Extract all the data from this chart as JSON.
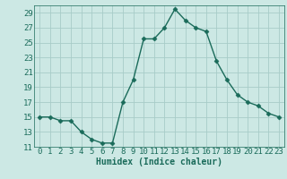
{
  "x": [
    0,
    1,
    2,
    3,
    4,
    5,
    6,
    7,
    8,
    9,
    10,
    11,
    12,
    13,
    14,
    15,
    16,
    17,
    18,
    19,
    20,
    21,
    22,
    23
  ],
  "y": [
    15,
    15,
    14.5,
    14.5,
    13,
    12,
    11.5,
    11.5,
    17,
    20,
    25.5,
    25.5,
    27,
    29.5,
    28,
    27,
    26.5,
    22.5,
    20,
    18,
    17,
    16.5,
    15.5,
    15
  ],
  "line_color": "#1a6b5a",
  "marker": "D",
  "markersize": 2.5,
  "linewidth": 1.0,
  "xlabel": "Humidex (Indice chaleur)",
  "background_color": "#cce8e4",
  "grid_color": "#a8ccc8",
  "ylim": [
    11,
    30
  ],
  "xlim": [
    -0.5,
    23.5
  ],
  "yticks": [
    11,
    13,
    15,
    17,
    19,
    21,
    23,
    25,
    27,
    29
  ],
  "xticks": [
    0,
    1,
    2,
    3,
    4,
    5,
    6,
    7,
    8,
    9,
    10,
    11,
    12,
    13,
    14,
    15,
    16,
    17,
    18,
    19,
    20,
    21,
    22,
    23
  ],
  "tick_color": "#1a6b5a",
  "xlabel_fontsize": 7,
  "tick_fontsize": 6.5
}
